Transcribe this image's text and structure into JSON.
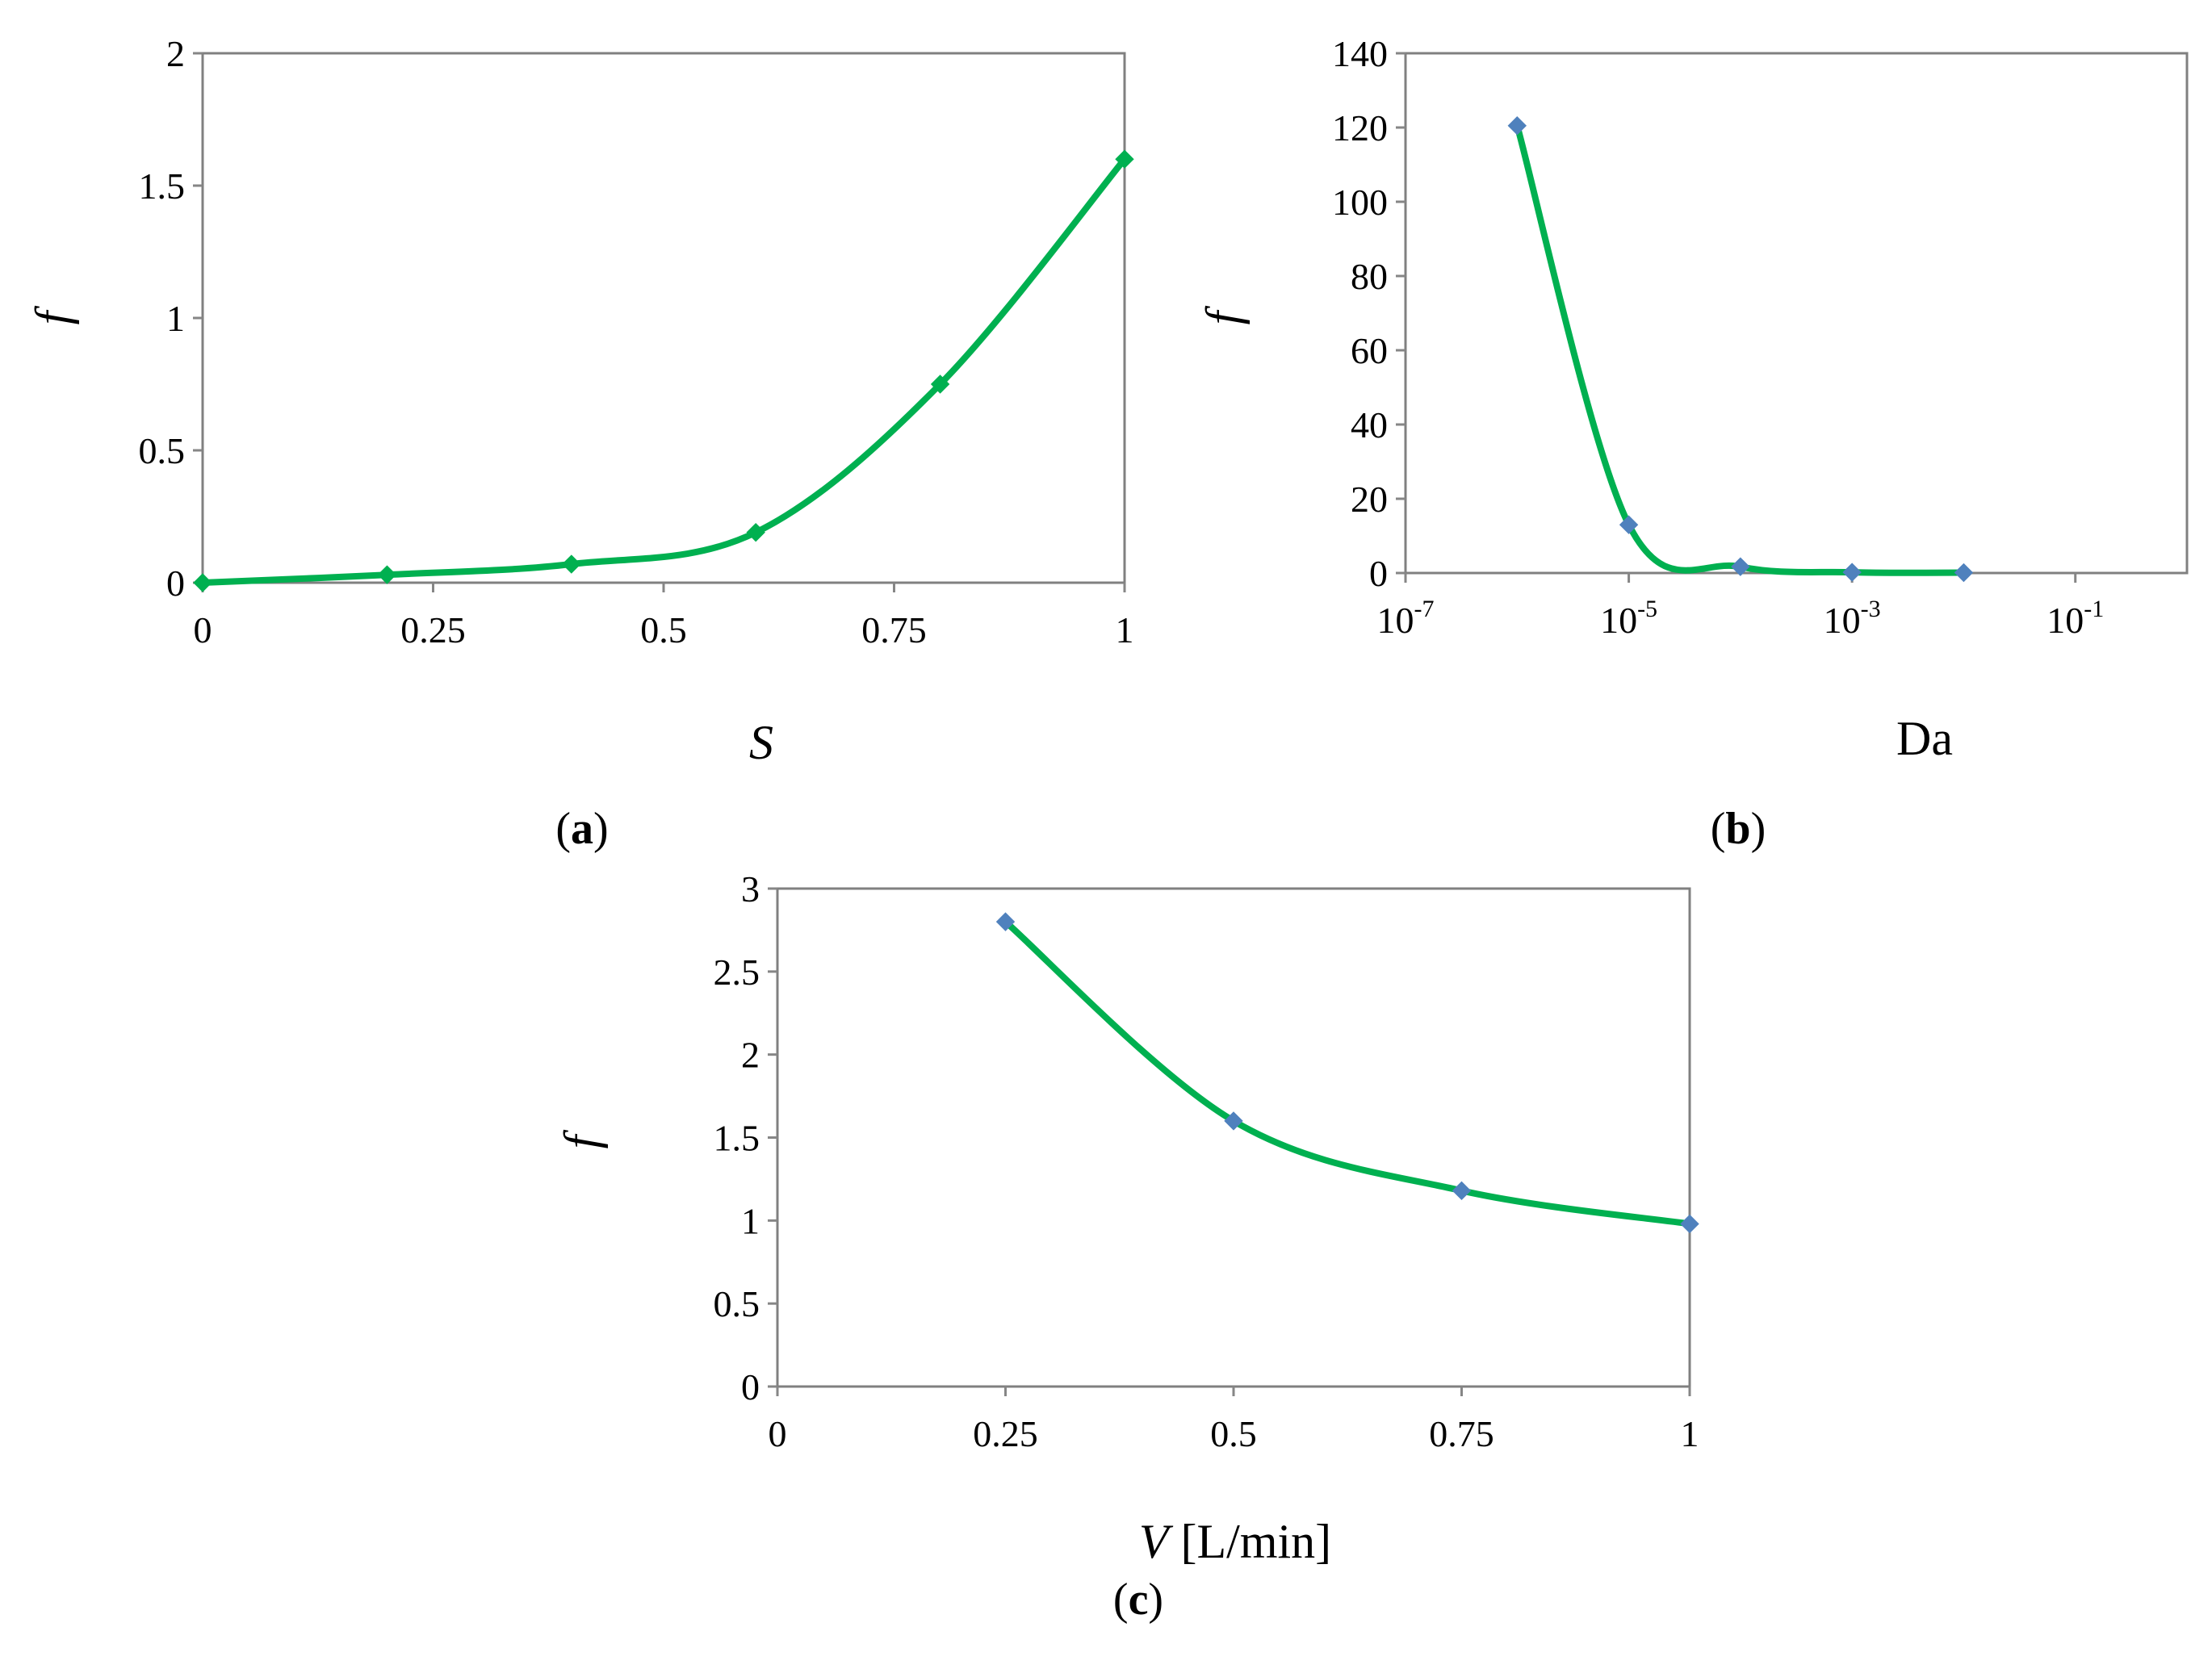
{
  "figure": {
    "colors": {
      "line": "#00b050",
      "marker_a": "#00b050",
      "marker_bc": "#4f81bd",
      "frame": "#808080",
      "axis": "#868686"
    }
  },
  "chart_data": [
    {
      "id": "a",
      "type": "line",
      "panel_label": "a",
      "xlabel": "S",
      "ylabel": "f",
      "x": [
        0,
        0.2,
        0.4,
        0.6,
        0.8,
        1.0
      ],
      "series": [
        {
          "values": [
            0.0,
            0.03,
            0.07,
            0.19,
            0.75,
            1.6
          ]
        }
      ],
      "xlim": [
        0,
        1
      ],
      "ylim": [
        0,
        2
      ],
      "xticks": [
        0,
        0.25,
        0.5,
        0.75,
        1
      ],
      "xtick_labels": [
        "0",
        "0.25",
        "0.5",
        "0.75",
        "1"
      ],
      "yticks": [
        0,
        0.5,
        1,
        1.5,
        2
      ],
      "ytick_labels": [
        "0",
        "0.5",
        "1",
        "1.5",
        "2"
      ],
      "xscale": "linear",
      "grid": false,
      "marker": "diamond",
      "marker_color": "#00b050"
    },
    {
      "id": "b",
      "type": "line",
      "panel_label": "b",
      "xlabel": "Da",
      "ylabel": "f",
      "x": [
        1e-06,
        1e-05,
        0.0001,
        0.001,
        0.01
      ],
      "series": [
        {
          "values": [
            120.5,
            13.0,
            1.7,
            0.2,
            0.1
          ]
        }
      ],
      "xlim": [
        1e-07,
        1
      ],
      "ylim": [
        0,
        140
      ],
      "xticks": [
        1e-07,
        1e-05,
        0.001,
        0.1
      ],
      "xtick_labels": [
        {
          "base": "10",
          "exp": "-7"
        },
        {
          "base": "10",
          "exp": "-5"
        },
        {
          "base": "10",
          "exp": "-3"
        },
        {
          "base": "10",
          "exp": "-1"
        }
      ],
      "yticks": [
        0,
        20,
        40,
        60,
        80,
        100,
        120,
        140
      ],
      "ytick_labels": [
        "0",
        "20",
        "40",
        "60",
        "80",
        "100",
        "120",
        "140"
      ],
      "xscale": "log",
      "grid": false,
      "marker": "diamond",
      "marker_color": "#4f81bd"
    },
    {
      "id": "c",
      "type": "line",
      "panel_label": "c",
      "xlabel": "V",
      "xlabel_unit": " [L/min]",
      "ylabel": "f",
      "x": [
        0.25,
        0.5,
        0.75,
        1.0
      ],
      "series": [
        {
          "values": [
            2.8,
            1.6,
            1.18,
            0.98
          ]
        }
      ],
      "xlim": [
        0,
        1
      ],
      "ylim": [
        0,
        3
      ],
      "xticks": [
        0,
        0.25,
        0.5,
        0.75,
        1
      ],
      "xtick_labels": [
        "0",
        "0.25",
        "0.5",
        "0.75",
        "1"
      ],
      "yticks": [
        0,
        0.5,
        1,
        1.5,
        2,
        2.5,
        3
      ],
      "ytick_labels": [
        "0",
        "0.5",
        "1",
        "1.5",
        "2",
        "2.5",
        "3"
      ],
      "xscale": "linear",
      "grid": false,
      "marker": "diamond",
      "marker_color": "#4f81bd"
    }
  ]
}
